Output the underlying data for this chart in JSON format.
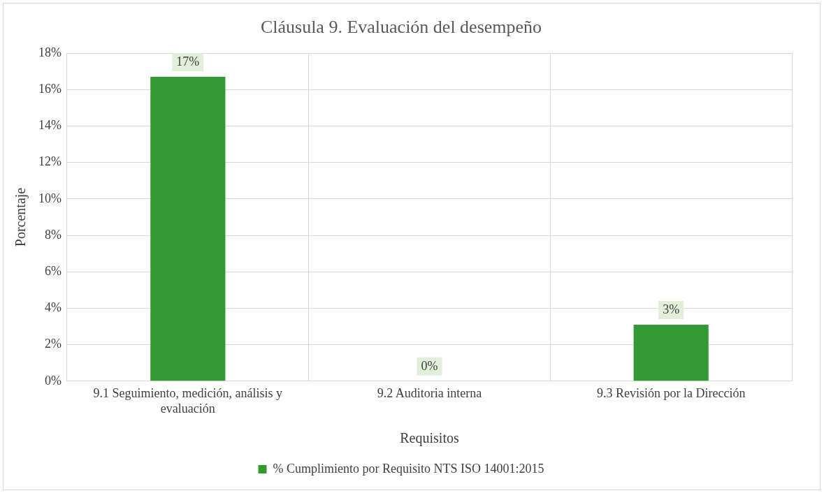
{
  "chart_data": {
    "type": "bar",
    "title": "Cláusula 9. Evaluación del desempeño",
    "xlabel": "Requisitos",
    "ylabel": "Porcentaje",
    "categories": [
      "9.1 Seguimiento, medición, análisis y evaluación",
      "9.2 Auditoria interna",
      "9.3 Revisión por la Dirección"
    ],
    "series": [
      {
        "name": "% Cumplimiento por Requisito NTS ISO 14001:2015",
        "color": "#339933",
        "values": [
          16.7,
          0,
          3.1
        ],
        "value_labels": [
          "17%",
          "0%",
          "3%"
        ]
      }
    ],
    "ylim": [
      0,
      18
    ],
    "yticks": [
      {
        "value": 0,
        "label": "0%"
      },
      {
        "value": 2,
        "label": "2%"
      },
      {
        "value": 4,
        "label": "4%"
      },
      {
        "value": 6,
        "label": "6%"
      },
      {
        "value": 8,
        "label": "8%"
      },
      {
        "value": 10,
        "label": "10%"
      },
      {
        "value": 12,
        "label": "12%"
      },
      {
        "value": 14,
        "label": "14%"
      },
      {
        "value": 16,
        "label": "16%"
      },
      {
        "value": 18,
        "label": "18%"
      }
    ],
    "grid": true,
    "legend": "bottom"
  }
}
